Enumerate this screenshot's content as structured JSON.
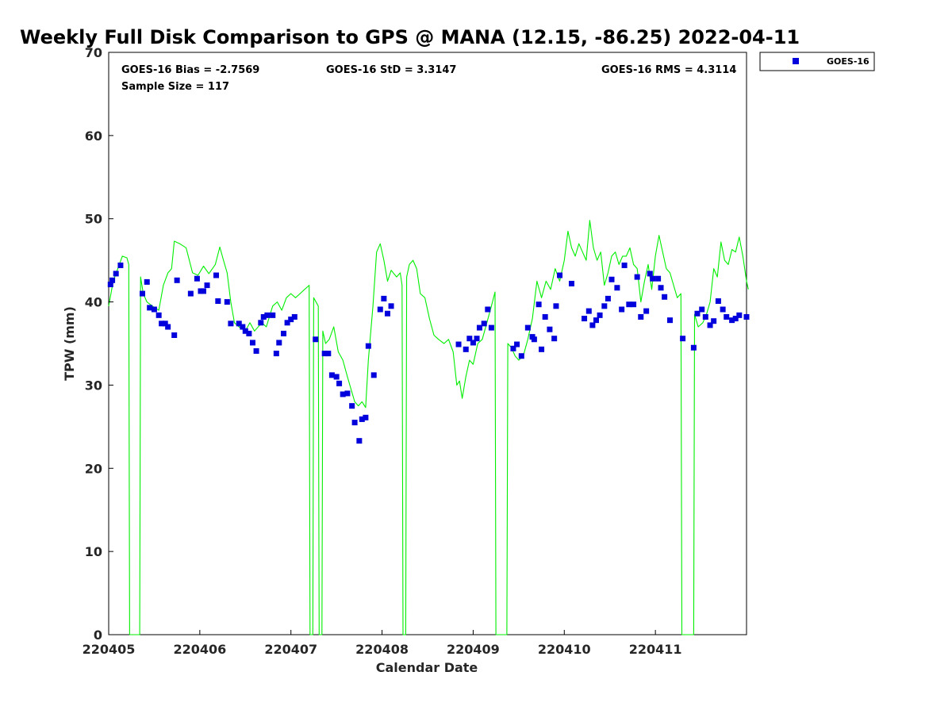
{
  "chart_data": {
    "type": "scatter",
    "title": "Weekly Full Disk Comparison to GPS @ MANA (12.15, -86.25) 2022-04-11",
    "xlabel": "Calendar Date",
    "ylabel": "TPW (mm)",
    "xlim": [
      0,
      7
    ],
    "ylim": [
      0,
      70
    ],
    "x_tick_labels": [
      "220405",
      "220406",
      "220407",
      "220408",
      "220409",
      "220410",
      "220411"
    ],
    "y_ticks": [
      0,
      10,
      20,
      30,
      40,
      50,
      60,
      70
    ],
    "legend": {
      "position": "top-right-outside",
      "entries": [
        "GOES-16"
      ]
    },
    "stats": {
      "bias": "GOES-16 Bias = -2.7569",
      "std": "GOES-16 StD = 3.3147",
      "rms": "GOES-16 RMS = 4.3114",
      "sample_size": "Sample Size = 117"
    },
    "colors": {
      "goes": "#0000dd",
      "gps": "#00ee00"
    },
    "series": [
      {
        "name": "GOES-16",
        "style": "markers",
        "points": [
          [
            0.02,
            42.1
          ],
          [
            0.04,
            42.6
          ],
          [
            0.08,
            43.4
          ],
          [
            0.13,
            44.4
          ],
          [
            0.37,
            41.0
          ],
          [
            0.42,
            42.4
          ],
          [
            0.45,
            39.3
          ],
          [
            0.5,
            39.1
          ],
          [
            0.55,
            38.4
          ],
          [
            0.58,
            37.4
          ],
          [
            0.62,
            37.4
          ],
          [
            0.65,
            37.0
          ],
          [
            0.72,
            36.0
          ],
          [
            0.75,
            42.6
          ],
          [
            0.9,
            41.0
          ],
          [
            0.97,
            42.8
          ],
          [
            1.01,
            41.3
          ],
          [
            1.04,
            41.3
          ],
          [
            1.08,
            42.0
          ],
          [
            1.18,
            43.2
          ],
          [
            1.2,
            40.1
          ],
          [
            1.3,
            40.0
          ],
          [
            1.34,
            37.4
          ],
          [
            1.43,
            37.4
          ],
          [
            1.47,
            37.0
          ],
          [
            1.5,
            36.5
          ],
          [
            1.54,
            36.2
          ],
          [
            1.58,
            35.1
          ],
          [
            1.62,
            34.1
          ],
          [
            1.67,
            37.5
          ],
          [
            1.7,
            38.2
          ],
          [
            1.74,
            38.4
          ],
          [
            1.8,
            38.4
          ],
          [
            1.84,
            33.8
          ],
          [
            1.87,
            35.1
          ],
          [
            1.92,
            36.2
          ],
          [
            1.96,
            37.5
          ],
          [
            2.0,
            37.9
          ],
          [
            2.04,
            38.2
          ],
          [
            2.27,
            35.5
          ],
          [
            2.37,
            33.8
          ],
          [
            2.41,
            33.8
          ],
          [
            2.45,
            31.2
          ],
          [
            2.5,
            31.0
          ],
          [
            2.53,
            30.2
          ],
          [
            2.57,
            28.9
          ],
          [
            2.62,
            29.0
          ],
          [
            2.67,
            27.5
          ],
          [
            2.7,
            25.5
          ],
          [
            2.75,
            23.3
          ],
          [
            2.78,
            25.9
          ],
          [
            2.82,
            26.1
          ],
          [
            2.85,
            34.7
          ],
          [
            2.91,
            31.2
          ],
          [
            2.98,
            39.1
          ],
          [
            3.02,
            40.4
          ],
          [
            3.06,
            38.6
          ],
          [
            3.1,
            39.5
          ],
          [
            3.84,
            34.9
          ],
          [
            3.92,
            34.3
          ],
          [
            3.96,
            35.6
          ],
          [
            4.0,
            35.1
          ],
          [
            4.04,
            35.6
          ],
          [
            4.07,
            36.9
          ],
          [
            4.12,
            37.4
          ],
          [
            4.16,
            39.1
          ],
          [
            4.2,
            36.9
          ],
          [
            4.44,
            34.4
          ],
          [
            4.48,
            34.9
          ],
          [
            4.53,
            33.5
          ],
          [
            4.6,
            36.9
          ],
          [
            4.65,
            35.8
          ],
          [
            4.67,
            35.5
          ],
          [
            4.72,
            39.7
          ],
          [
            4.75,
            34.3
          ],
          [
            4.79,
            38.2
          ],
          [
            4.84,
            36.7
          ],
          [
            4.89,
            35.6
          ],
          [
            4.91,
            39.5
          ],
          [
            4.95,
            43.2
          ],
          [
            5.08,
            42.2
          ],
          [
            5.22,
            38.0
          ],
          [
            5.27,
            38.9
          ],
          [
            5.31,
            37.2
          ],
          [
            5.35,
            37.8
          ],
          [
            5.39,
            38.4
          ],
          [
            5.44,
            39.5
          ],
          [
            5.48,
            40.4
          ],
          [
            5.52,
            42.7
          ],
          [
            5.58,
            41.7
          ],
          [
            5.63,
            39.1
          ],
          [
            5.66,
            44.4
          ],
          [
            5.71,
            39.7
          ],
          [
            5.76,
            39.7
          ],
          [
            5.8,
            43.0
          ],
          [
            5.84,
            38.2
          ],
          [
            5.9,
            38.9
          ],
          [
            5.94,
            43.4
          ],
          [
            5.97,
            42.8
          ],
          [
            6.03,
            42.8
          ],
          [
            6.06,
            41.7
          ],
          [
            6.1,
            40.6
          ],
          [
            6.16,
            37.8
          ],
          [
            6.3,
            35.6
          ],
          [
            6.42,
            34.5
          ],
          [
            6.46,
            38.6
          ],
          [
            6.51,
            39.1
          ],
          [
            6.55,
            38.2
          ],
          [
            6.6,
            37.2
          ],
          [
            6.64,
            37.7
          ],
          [
            6.69,
            40.1
          ],
          [
            6.74,
            39.1
          ],
          [
            6.78,
            38.2
          ],
          [
            6.84,
            37.8
          ],
          [
            6.88,
            38.0
          ],
          [
            6.92,
            38.4
          ],
          [
            7.0,
            38.2
          ]
        ]
      },
      {
        "name": "GPS",
        "style": "line",
        "points": [
          [
            0.0,
            39.5
          ],
          [
            0.05,
            42.5
          ],
          [
            0.1,
            44.0
          ],
          [
            0.15,
            45.5
          ],
          [
            0.2,
            45.3
          ],
          [
            0.22,
            44.5
          ],
          [
            0.23,
            0.0
          ],
          [
            0.34,
            0.0
          ],
          [
            0.35,
            43.0
          ],
          [
            0.38,
            41.0
          ],
          [
            0.42,
            40.0
          ],
          [
            0.48,
            39.5
          ],
          [
            0.55,
            39.0
          ],
          [
            0.6,
            42.0
          ],
          [
            0.65,
            43.5
          ],
          [
            0.69,
            44.0
          ],
          [
            0.72,
            47.3
          ],
          [
            0.78,
            47.0
          ],
          [
            0.85,
            46.5
          ],
          [
            0.92,
            43.5
          ],
          [
            0.98,
            43.2
          ],
          [
            1.04,
            44.3
          ],
          [
            1.1,
            43.4
          ],
          [
            1.17,
            44.5
          ],
          [
            1.22,
            46.6
          ],
          [
            1.26,
            45.0
          ],
          [
            1.3,
            43.5
          ],
          [
            1.34,
            40.0
          ],
          [
            1.38,
            37.5
          ],
          [
            1.43,
            37.0
          ],
          [
            1.5,
            36.5
          ],
          [
            1.55,
            37.5
          ],
          [
            1.6,
            36.5
          ],
          [
            1.68,
            37.5
          ],
          [
            1.73,
            37.0
          ],
          [
            1.8,
            39.5
          ],
          [
            1.85,
            40.0
          ],
          [
            1.9,
            39.0
          ],
          [
            1.95,
            40.5
          ],
          [
            2.0,
            41.0
          ],
          [
            2.05,
            40.5
          ],
          [
            2.12,
            41.2
          ],
          [
            2.2,
            42.0
          ],
          [
            2.21,
            0.0
          ],
          [
            2.24,
            0.0
          ],
          [
            2.25,
            40.5
          ],
          [
            2.3,
            39.5
          ],
          [
            2.31,
            0.0
          ],
          [
            2.34,
            0.0
          ],
          [
            2.35,
            36.5
          ],
          [
            2.38,
            35.0
          ],
          [
            2.42,
            35.5
          ],
          [
            2.47,
            37.0
          ],
          [
            2.52,
            34.0
          ],
          [
            2.57,
            33.0
          ],
          [
            2.62,
            31.0
          ],
          [
            2.66,
            29.5
          ],
          [
            2.7,
            28.0
          ],
          [
            2.74,
            27.5
          ],
          [
            2.78,
            28.0
          ],
          [
            2.82,
            27.3
          ],
          [
            2.85,
            33.0
          ],
          [
            2.9,
            39.5
          ],
          [
            2.94,
            46.0
          ],
          [
            2.98,
            47.0
          ],
          [
            3.02,
            45.0
          ],
          [
            3.06,
            42.5
          ],
          [
            3.1,
            43.8
          ],
          [
            3.16,
            43.0
          ],
          [
            3.2,
            43.5
          ],
          [
            3.22,
            42.0
          ],
          [
            3.23,
            0.0
          ],
          [
            3.26,
            0.0
          ],
          [
            3.27,
            43.0
          ],
          [
            3.3,
            44.5
          ],
          [
            3.34,
            45.0
          ],
          [
            3.38,
            44.0
          ],
          [
            3.42,
            41.0
          ],
          [
            3.47,
            40.5
          ],
          [
            3.52,
            38.0
          ],
          [
            3.57,
            36.0
          ],
          [
            3.62,
            35.5
          ],
          [
            3.68,
            35.0
          ],
          [
            3.73,
            35.5
          ],
          [
            3.78,
            34.0
          ],
          [
            3.82,
            30.0
          ],
          [
            3.85,
            30.5
          ],
          [
            3.88,
            28.4
          ],
          [
            3.92,
            31.0
          ],
          [
            3.96,
            33.0
          ],
          [
            4.0,
            32.5
          ],
          [
            4.05,
            35.0
          ],
          [
            4.1,
            35.5
          ],
          [
            4.15,
            37.5
          ],
          [
            4.2,
            39.5
          ],
          [
            4.24,
            41.2
          ],
          [
            4.25,
            0.0
          ],
          [
            4.37,
            0.0
          ],
          [
            4.38,
            35.0
          ],
          [
            4.42,
            34.5
          ],
          [
            4.46,
            33.5
          ],
          [
            4.5,
            33.0
          ],
          [
            4.55,
            33.5
          ],
          [
            4.6,
            35.5
          ],
          [
            4.65,
            38.0
          ],
          [
            4.7,
            42.5
          ],
          [
            4.75,
            40.5
          ],
          [
            4.8,
            42.5
          ],
          [
            4.85,
            41.5
          ],
          [
            4.9,
            44.0
          ],
          [
            4.95,
            42.5
          ],
          [
            5.0,
            45.0
          ],
          [
            5.04,
            48.5
          ],
          [
            5.08,
            46.5
          ],
          [
            5.12,
            45.5
          ],
          [
            5.16,
            47.0
          ],
          [
            5.2,
            46.0
          ],
          [
            5.24,
            45.0
          ],
          [
            5.28,
            49.8
          ],
          [
            5.32,
            46.5
          ],
          [
            5.36,
            45.0
          ],
          [
            5.4,
            46.0
          ],
          [
            5.44,
            42.0
          ],
          [
            5.48,
            43.5
          ],
          [
            5.52,
            45.5
          ],
          [
            5.56,
            46.0
          ],
          [
            5.6,
            44.5
          ],
          [
            5.64,
            45.5
          ],
          [
            5.68,
            45.5
          ],
          [
            5.72,
            46.5
          ],
          [
            5.76,
            44.5
          ],
          [
            5.8,
            44.0
          ],
          [
            5.84,
            40.0
          ],
          [
            5.88,
            42.5
          ],
          [
            5.92,
            44.5
          ],
          [
            5.96,
            41.5
          ],
          [
            6.0,
            45.5
          ],
          [
            6.04,
            48.0
          ],
          [
            6.08,
            46.0
          ],
          [
            6.12,
            44.0
          ],
          [
            6.16,
            43.5
          ],
          [
            6.2,
            42.0
          ],
          [
            6.24,
            40.5
          ],
          [
            6.28,
            41.0
          ],
          [
            6.29,
            0.0
          ],
          [
            6.42,
            0.0
          ],
          [
            6.43,
            38.5
          ],
          [
            6.47,
            37.0
          ],
          [
            6.52,
            37.5
          ],
          [
            6.56,
            38.5
          ],
          [
            6.6,
            40.0
          ],
          [
            6.64,
            44.0
          ],
          [
            6.68,
            43.0
          ],
          [
            6.72,
            47.2
          ],
          [
            6.76,
            45.0
          ],
          [
            6.8,
            44.5
          ],
          [
            6.84,
            46.3
          ],
          [
            6.88,
            46.0
          ],
          [
            6.92,
            47.8
          ],
          [
            6.96,
            45.5
          ],
          [
            7.0,
            42.5
          ],
          [
            7.02,
            41.5
          ]
        ]
      }
    ]
  }
}
